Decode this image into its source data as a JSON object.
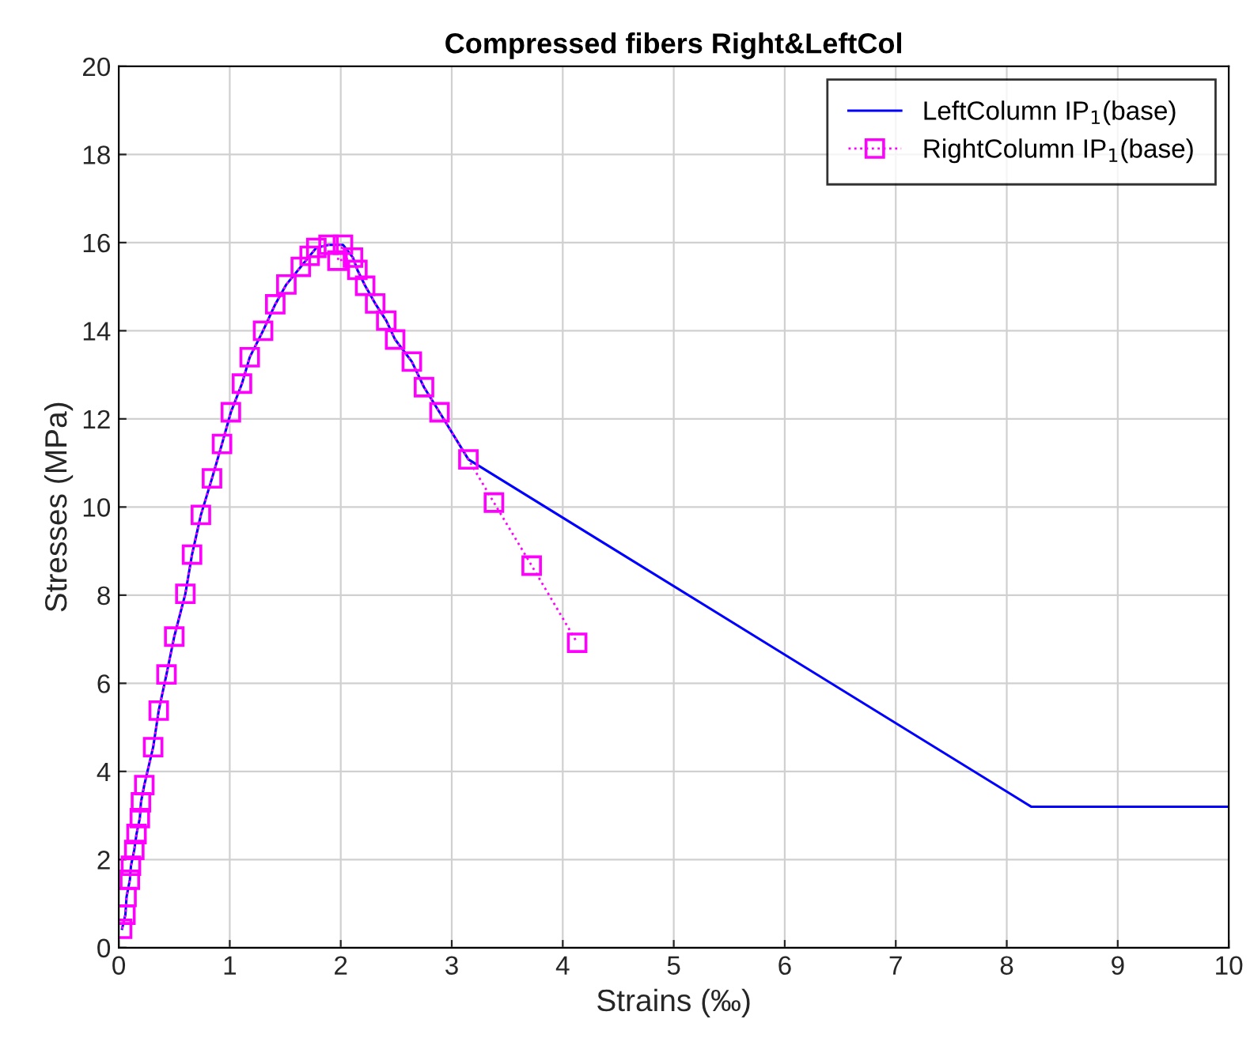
{
  "chart_data": {
    "type": "line",
    "title": "Compressed fibers Right&LeftCol",
    "xlabel": "Strains (‰)",
    "ylabel": "Stresses (MPa)",
    "xlim": [
      0,
      10
    ],
    "ylim": [
      0,
      20
    ],
    "xticks": [
      0,
      1,
      2,
      3,
      4,
      5,
      6,
      7,
      8,
      9,
      10
    ],
    "yticks": [
      0,
      2,
      4,
      6,
      8,
      10,
      12,
      14,
      16,
      18,
      20
    ],
    "grid": true,
    "legend": "top right",
    "series": [
      {
        "name": "LeftColumn IP$_{1}$(base)",
        "color": "#0000ff",
        "marker": "none",
        "line_style": "solid",
        "x": [
          0.03,
          0.06,
          0.07,
          0.1,
          0.11,
          0.14,
          0.16,
          0.19,
          0.2,
          0.23,
          0.31,
          0.36,
          0.43,
          0.5,
          0.6,
          0.66,
          0.74,
          0.84,
          0.93,
          1.01,
          1.11,
          1.18,
          1.3,
          1.41,
          1.51,
          1.64,
          1.72,
          1.78,
          1.89,
          2.02,
          2.11,
          2.15,
          2.22,
          2.31,
          2.41,
          2.49,
          2.64,
          2.75,
          2.89,
          3.15,
          8.22,
          10
        ],
        "values": [
          0.43,
          0.75,
          1.15,
          1.54,
          1.86,
          2.22,
          2.58,
          2.94,
          3.3,
          3.69,
          4.55,
          5.38,
          6.2,
          7.06,
          8.03,
          8.92,
          9.82,
          10.65,
          11.43,
          12.15,
          12.8,
          13.4,
          14.0,
          14.6,
          15.05,
          15.45,
          15.7,
          15.88,
          15.95,
          15.95,
          15.66,
          15.38,
          15.02,
          14.62,
          14.23,
          13.8,
          13.3,
          12.72,
          12.15,
          11.08,
          3.2,
          3.2
        ]
      },
      {
        "name": "RightColumn IP$_{1}$(base)",
        "color": "#ff00ff",
        "marker": "square",
        "line_style": "dotted",
        "x": [
          0.03,
          0.06,
          0.07,
          0.1,
          0.11,
          0.14,
          0.16,
          0.19,
          0.2,
          0.23,
          0.31,
          0.36,
          0.43,
          0.5,
          0.6,
          0.66,
          0.74,
          0.84,
          0.93,
          1.01,
          1.11,
          1.18,
          1.3,
          1.41,
          1.51,
          1.64,
          1.72,
          1.78,
          1.89,
          2.02,
          1.97,
          2.11,
          2.15,
          2.22,
          2.31,
          2.41,
          2.49,
          2.64,
          2.75,
          2.89,
          3.15,
          3.38,
          3.72,
          4.13
        ],
        "values": [
          0.43,
          0.75,
          1.15,
          1.54,
          1.86,
          2.22,
          2.58,
          2.94,
          3.3,
          3.69,
          4.55,
          5.38,
          6.2,
          7.06,
          8.03,
          8.92,
          9.82,
          10.65,
          11.43,
          12.15,
          12.8,
          13.4,
          14.0,
          14.6,
          15.05,
          15.45,
          15.7,
          15.88,
          15.95,
          15.95,
          15.59,
          15.66,
          15.38,
          15.02,
          14.62,
          14.23,
          13.8,
          13.3,
          12.72,
          12.15,
          11.08,
          10.1,
          8.67,
          6.92
        ]
      }
    ]
  }
}
